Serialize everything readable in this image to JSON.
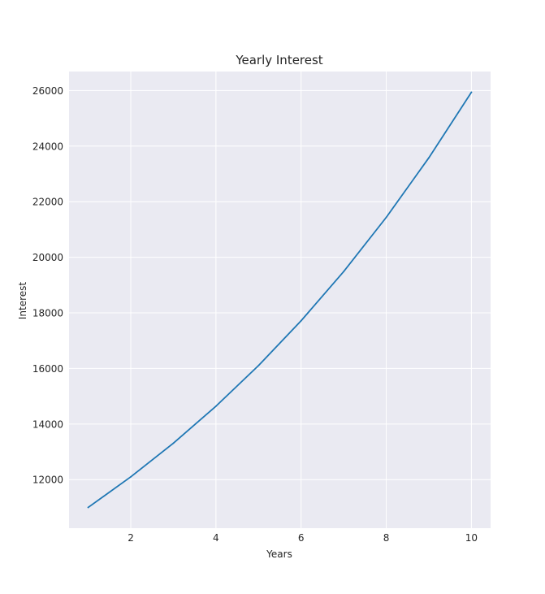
{
  "chart_data": {
    "type": "line",
    "title": "Yearly Interest",
    "xlabel": "Years",
    "ylabel": "Interest",
    "x": [
      1,
      2,
      3,
      4,
      5,
      6,
      7,
      8,
      9,
      10
    ],
    "series": [
      {
        "values": [
          11000,
          12100,
          13310,
          14641,
          16105,
          17716,
          19487,
          21436,
          23579,
          25937
        ]
      }
    ],
    "xlim": [
      0.55,
      10.45
    ],
    "ylim": [
      10253,
      26684
    ],
    "xticks": [
      2,
      4,
      6,
      8,
      10
    ],
    "yticks": [
      12000,
      14000,
      16000,
      18000,
      20000,
      22000,
      24000,
      26000
    ],
    "grid": true,
    "legend": "none"
  },
  "colors": {
    "plot_background": "#eaeaf2",
    "grid": "#ffffff",
    "line": "#1f77b4",
    "text": "#262626"
  }
}
